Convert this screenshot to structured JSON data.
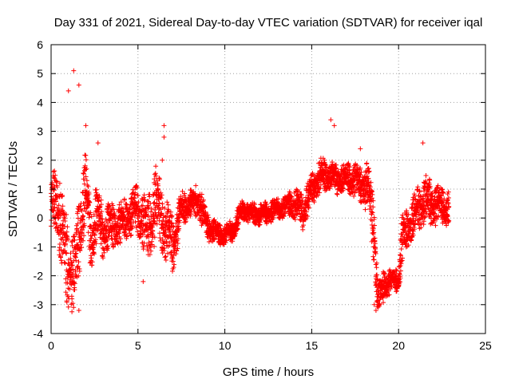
{
  "chart_data": {
    "type": "scatter",
    "title": "Day 331 of 2021, Sidereal Day-to-day VTEC variation (SDTVAR) for receiver iqal",
    "xlabel": "GPS time / hours",
    "ylabel": "SDTVAR / TECUs",
    "xlim": [
      0,
      25
    ],
    "ylim": [
      -4,
      6
    ],
    "xticks": [
      "0",
      "5",
      "10",
      "15",
      "20",
      "25"
    ],
    "yticks": [
      "-4",
      "-3",
      "-2",
      "-1",
      "0",
      "1",
      "2",
      "3",
      "4",
      "5",
      "6"
    ],
    "grid": true,
    "marker": "+",
    "series": [
      {
        "name": "SDTVAR iqal",
        "color": "#ff0000",
        "data_extent_hours": [
          0,
          22.9
        ],
        "trend": {
          "x": [
            0.0,
            0.3,
            0.6,
            0.9,
            1.1,
            1.3,
            1.5,
            1.8,
            2.0,
            2.3,
            2.6,
            3.0,
            3.5,
            4.0,
            4.5,
            5.0,
            5.5,
            6.0,
            6.5,
            7.0,
            7.5,
            8.0,
            8.5,
            9.0,
            9.5,
            10.0,
            10.5,
            11.0,
            11.5,
            12.0,
            12.5,
            13.0,
            13.5,
            14.0,
            14.5,
            15.0,
            15.5,
            16.0,
            16.5,
            17.0,
            17.5,
            18.0,
            18.3,
            18.6,
            18.8,
            19.2,
            19.6,
            20.0,
            20.2,
            20.5,
            21.0,
            21.5,
            22.0,
            22.5,
            22.9
          ],
          "y": [
            0.3,
            0.8,
            -0.5,
            -1.5,
            -1.8,
            -2.0,
            -1.2,
            0.5,
            1.0,
            -0.8,
            0.2,
            -0.5,
            -0.3,
            -0.2,
            0.1,
            0.3,
            -0.5,
            0.5,
            -0.2,
            -1.0,
            0.3,
            0.5,
            0.6,
            -0.3,
            -0.5,
            -0.6,
            -0.4,
            0.3,
            0.2,
            0.1,
            0.2,
            0.3,
            0.4,
            0.5,
            0.2,
            1.0,
            1.5,
            1.5,
            1.3,
            1.4,
            1.3,
            1.2,
            0.9,
            -0.5,
            -2.8,
            -2.3,
            -2.2,
            -2.1,
            -0.7,
            -0.4,
            0.2,
            0.6,
            0.5,
            0.4,
            0.3
          ]
        },
        "spread": [
          0.9,
          0.9,
          1.1,
          1.3,
          1.0,
          1.2,
          1.0,
          1.3,
          1.0,
          0.9,
          0.9,
          0.7,
          0.7,
          0.6,
          0.6,
          0.7,
          0.9,
          1.1,
          0.9,
          0.8,
          0.5,
          0.4,
          0.5,
          0.4,
          0.3,
          0.3,
          0.3,
          0.3,
          0.3,
          0.3,
          0.3,
          0.3,
          0.3,
          0.5,
          0.5,
          0.5,
          0.5,
          0.4,
          0.4,
          0.4,
          0.5,
          0.6,
          0.8,
          1.0,
          0.5,
          0.5,
          0.3,
          0.4,
          0.8,
          0.5,
          0.6,
          0.7,
          0.6,
          0.5,
          0.5
        ],
        "notable_points": [
          {
            "x": 1.3,
            "y": 5.1
          },
          {
            "x": 1.0,
            "y": 4.4
          },
          {
            "x": 1.6,
            "y": 4.6
          },
          {
            "x": 2.0,
            "y": 3.2
          },
          {
            "x": 2.7,
            "y": 2.6
          },
          {
            "x": 1.6,
            "y": -3.2
          },
          {
            "x": 1.2,
            "y": -2.8
          },
          {
            "x": 6.5,
            "y": 3.2
          },
          {
            "x": 6.5,
            "y": 2.8
          },
          {
            "x": 6.4,
            "y": 2.0
          },
          {
            "x": 5.3,
            "y": -2.2
          },
          {
            "x": 16.1,
            "y": 3.4
          },
          {
            "x": 16.3,
            "y": 3.2
          },
          {
            "x": 17.8,
            "y": 2.4
          },
          {
            "x": 18.7,
            "y": -3.2
          },
          {
            "x": 18.6,
            "y": -3.0
          },
          {
            "x": 21.4,
            "y": 2.6
          },
          {
            "x": 0.5,
            "y": 1.2
          }
        ]
      }
    ]
  }
}
